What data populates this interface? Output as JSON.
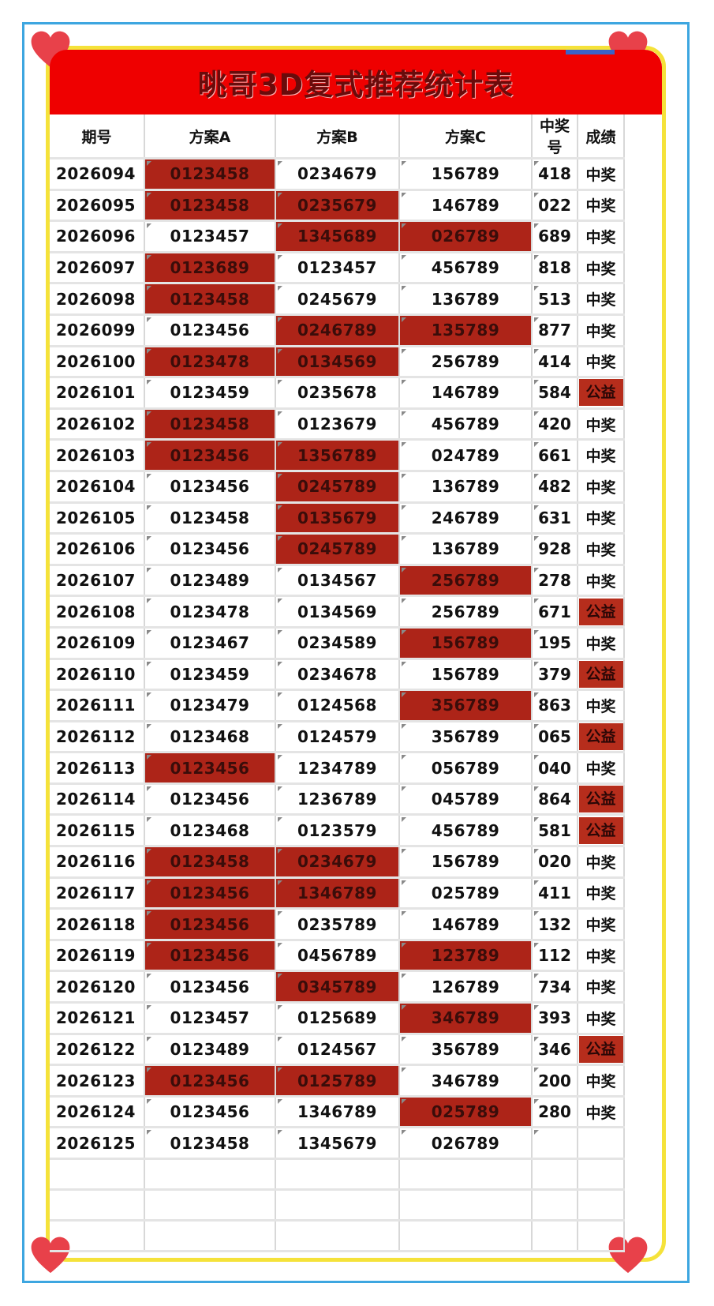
{
  "title": "晀哥3D复式推荐统计表",
  "headers": {
    "period": "期号",
    "a": "方案A",
    "b": "方案B",
    "c": "方案C",
    "win": "中奖号",
    "result": "成绩"
  },
  "colors": {
    "title_bg": "#ef0000",
    "hit": "#ad2418",
    "frame_outer": "#3da6e0",
    "frame_inner": "#f5e23a",
    "heart": "#e8414a"
  },
  "rows": [
    {
      "period": "2026094",
      "a": "0123458",
      "b": "0234679",
      "c": "156789",
      "win": "418",
      "result": "中奖",
      "hitA": true,
      "hitB": false,
      "hitC": false
    },
    {
      "period": "2026095",
      "a": "0123458",
      "b": "0235679",
      "c": "146789",
      "win": "022",
      "result": "中奖",
      "hitA": true,
      "hitB": true,
      "hitC": false
    },
    {
      "period": "2026096",
      "a": "0123457",
      "b": "1345689",
      "c": "026789",
      "win": "689",
      "result": "中奖",
      "hitA": false,
      "hitB": true,
      "hitC": true
    },
    {
      "period": "2026097",
      "a": "0123689",
      "b": "0123457",
      "c": "456789",
      "win": "818",
      "result": "中奖",
      "hitA": true,
      "hitB": false,
      "hitC": false
    },
    {
      "period": "2026098",
      "a": "0123458",
      "b": "0245679",
      "c": "136789",
      "win": "513",
      "result": "中奖",
      "hitA": true,
      "hitB": false,
      "hitC": false
    },
    {
      "period": "2026099",
      "a": "0123456",
      "b": "0246789",
      "c": "135789",
      "win": "877",
      "result": "中奖",
      "hitA": false,
      "hitB": true,
      "hitC": true
    },
    {
      "period": "2026100",
      "a": "0123478",
      "b": "0134569",
      "c": "256789",
      "win": "414",
      "result": "中奖",
      "hitA": true,
      "hitB": true,
      "hitC": false
    },
    {
      "period": "2026101",
      "a": "0123459",
      "b": "0235678",
      "c": "146789",
      "win": "584",
      "result": "公益",
      "hitA": false,
      "hitB": false,
      "hitC": false
    },
    {
      "period": "2026102",
      "a": "0123458",
      "b": "0123679",
      "c": "456789",
      "win": "420",
      "result": "中奖",
      "hitA": true,
      "hitB": false,
      "hitC": false
    },
    {
      "period": "2026103",
      "a": "0123456",
      "b": "1356789",
      "c": "024789",
      "win": "661",
      "result": "中奖",
      "hitA": true,
      "hitB": true,
      "hitC": false
    },
    {
      "period": "2026104",
      "a": "0123456",
      "b": "0245789",
      "c": "136789",
      "win": "482",
      "result": "中奖",
      "hitA": false,
      "hitB": true,
      "hitC": false
    },
    {
      "period": "2026105",
      "a": "0123458",
      "b": "0135679",
      "c": "246789",
      "win": "631",
      "result": "中奖",
      "hitA": false,
      "hitB": true,
      "hitC": false
    },
    {
      "period": "2026106",
      "a": "0123456",
      "b": "0245789",
      "c": "136789",
      "win": "928",
      "result": "中奖",
      "hitA": false,
      "hitB": true,
      "hitC": false
    },
    {
      "period": "2026107",
      "a": "0123489",
      "b": "0134567",
      "c": "256789",
      "win": "278",
      "result": "中奖",
      "hitA": false,
      "hitB": false,
      "hitC": true
    },
    {
      "period": "2026108",
      "a": "0123478",
      "b": "0134569",
      "c": "256789",
      "win": "671",
      "result": "公益",
      "hitA": false,
      "hitB": false,
      "hitC": false
    },
    {
      "period": "2026109",
      "a": "0123467",
      "b": "0234589",
      "c": "156789",
      "win": "195",
      "result": "中奖",
      "hitA": false,
      "hitB": false,
      "hitC": true
    },
    {
      "period": "2026110",
      "a": "0123459",
      "b": "0234678",
      "c": "156789",
      "win": "379",
      "result": "公益",
      "hitA": false,
      "hitB": false,
      "hitC": false
    },
    {
      "period": "2026111",
      "a": "0123479",
      "b": "0124568",
      "c": "356789",
      "win": "863",
      "result": "中奖",
      "hitA": false,
      "hitB": false,
      "hitC": true
    },
    {
      "period": "2026112",
      "a": "0123468",
      "b": "0124579",
      "c": "356789",
      "win": "065",
      "result": "公益",
      "hitA": false,
      "hitB": false,
      "hitC": false
    },
    {
      "period": "2026113",
      "a": "0123456",
      "b": "1234789",
      "c": "056789",
      "win": "040",
      "result": "中奖",
      "hitA": true,
      "hitB": false,
      "hitC": false
    },
    {
      "period": "2026114",
      "a": "0123456",
      "b": "1236789",
      "c": "045789",
      "win": "864",
      "result": "公益",
      "hitA": false,
      "hitB": false,
      "hitC": false
    },
    {
      "period": "2026115",
      "a": "0123468",
      "b": "0123579",
      "c": "456789",
      "win": "581",
      "result": "公益",
      "hitA": false,
      "hitB": false,
      "hitC": false
    },
    {
      "period": "2026116",
      "a": "0123458",
      "b": "0234679",
      "c": "156789",
      "win": "020",
      "result": "中奖",
      "hitA": true,
      "hitB": true,
      "hitC": false
    },
    {
      "period": "2026117",
      "a": "0123456",
      "b": "1346789",
      "c": "025789",
      "win": "411",
      "result": "中奖",
      "hitA": true,
      "hitB": true,
      "hitC": false
    },
    {
      "period": "2026118",
      "a": "0123456",
      "b": "0235789",
      "c": "146789",
      "win": "132",
      "result": "中奖",
      "hitA": true,
      "hitB": false,
      "hitC": false
    },
    {
      "period": "2026119",
      "a": "0123456",
      "b": "0456789",
      "c": "123789",
      "win": "112",
      "result": "中奖",
      "hitA": true,
      "hitB": false,
      "hitC": true
    },
    {
      "period": "2026120",
      "a": "0123456",
      "b": "0345789",
      "c": "126789",
      "win": "734",
      "result": "中奖",
      "hitA": false,
      "hitB": true,
      "hitC": false
    },
    {
      "period": "2026121",
      "a": "0123457",
      "b": "0125689",
      "c": "346789",
      "win": "393",
      "result": "中奖",
      "hitA": false,
      "hitB": false,
      "hitC": true
    },
    {
      "period": "2026122",
      "a": "0123489",
      "b": "0124567",
      "c": "356789",
      "win": "346",
      "result": "公益",
      "hitA": false,
      "hitB": false,
      "hitC": false
    },
    {
      "period": "2026123",
      "a": "0123456",
      "b": "0125789",
      "c": "346789",
      "win": "200",
      "result": "中奖",
      "hitA": true,
      "hitB": true,
      "hitC": false
    },
    {
      "period": "2026124",
      "a": "0123456",
      "b": "1346789",
      "c": "025789",
      "win": "280",
      "result": "中奖",
      "hitA": false,
      "hitB": false,
      "hitC": true
    },
    {
      "period": "2026125",
      "a": "0123458",
      "b": "1345679",
      "c": "026789",
      "win": "",
      "result": "",
      "hitA": false,
      "hitB": false,
      "hitC": false
    }
  ]
}
